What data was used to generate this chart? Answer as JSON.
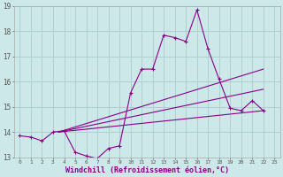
{
  "background_color": "#cce8e8",
  "grid_color": "#aacccc",
  "line_color": "#880088",
  "x_label": "Windchill (Refroidissement éolien,°C)",
  "y_min": 13,
  "y_max": 19,
  "x_min": 0,
  "x_max": 23,
  "y_ticks": [
    13,
    14,
    15,
    16,
    17,
    18,
    19
  ],
  "x_ticks": [
    0,
    1,
    2,
    3,
    4,
    5,
    6,
    7,
    8,
    9,
    10,
    11,
    12,
    13,
    14,
    15,
    16,
    17,
    18,
    19,
    20,
    21,
    22,
    23
  ],
  "series1_x": [
    0,
    1,
    2,
    3,
    4,
    5,
    6,
    7,
    8,
    9,
    10,
    11,
    12,
    13,
    14,
    15,
    16,
    17,
    18,
    19,
    20,
    21,
    22
  ],
  "series1_y": [
    13.85,
    13.8,
    13.65,
    14.0,
    14.05,
    13.2,
    13.05,
    12.95,
    13.35,
    13.45,
    15.55,
    16.5,
    16.5,
    17.85,
    17.75,
    17.6,
    18.85,
    17.3,
    16.1,
    14.95,
    14.85,
    15.25,
    14.85
  ],
  "line1_x": [
    3.5,
    22
  ],
  "line1_y": [
    14.0,
    16.5
  ],
  "line2_x": [
    3.5,
    22
  ],
  "line2_y": [
    14.0,
    15.7
  ],
  "line3_x": [
    3.5,
    22
  ],
  "line3_y": [
    14.0,
    14.85
  ]
}
